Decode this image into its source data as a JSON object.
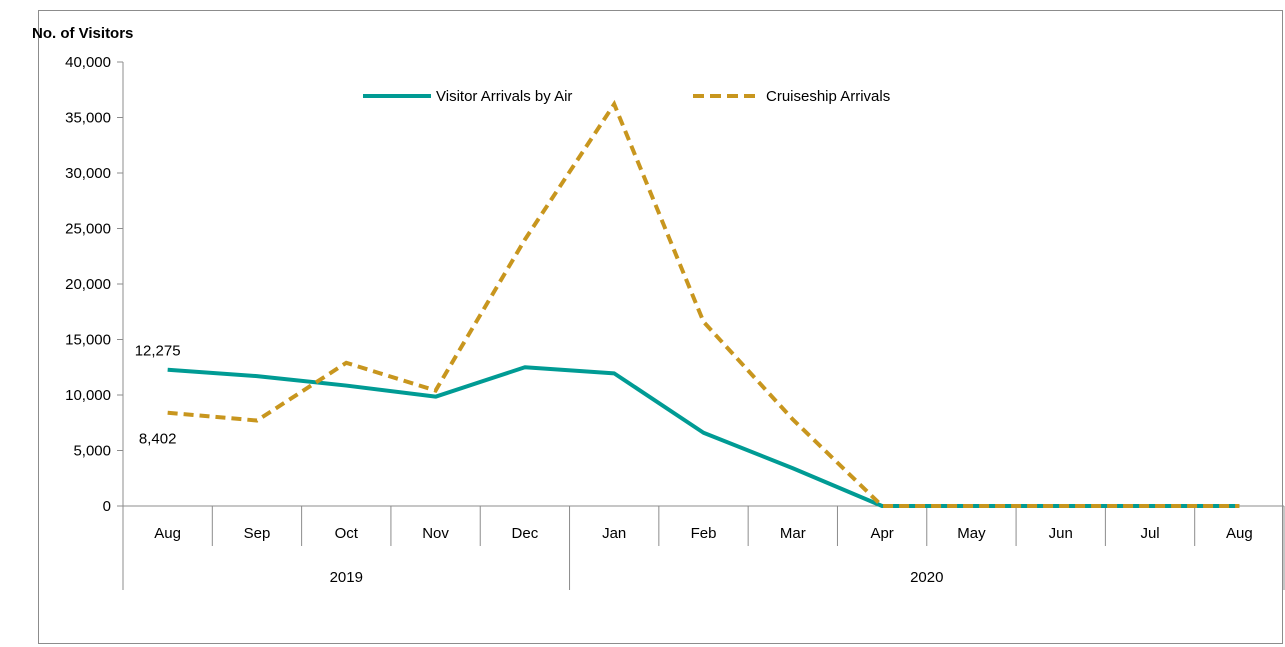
{
  "chart_data": {
    "type": "line",
    "ylabel": "No. of  Visitors",
    "xlabel": "",
    "ylim": [
      0,
      40000
    ],
    "yticks": [
      0,
      5000,
      10000,
      15000,
      20000,
      25000,
      30000,
      35000,
      40000
    ],
    "ytick_labels": [
      "0",
      "5,000",
      "10,000",
      "15,000",
      "20,000",
      "25,000",
      "30,000",
      "35,000",
      "40,000"
    ],
    "categories": [
      "Aug",
      "Sep",
      "Oct",
      "Nov",
      "Dec",
      "Jan",
      "Feb",
      "Mar",
      "Apr",
      "May",
      "Jun",
      "Jul",
      "Aug"
    ],
    "groups": [
      {
        "label": "2019",
        "start": 0,
        "end": 4
      },
      {
        "label": "2020",
        "start": 5,
        "end": 12
      }
    ],
    "series": [
      {
        "name": "Visitor Arrivals by Air",
        "color": "#009b94",
        "style": "solid",
        "values": [
          12275,
          11700,
          10850,
          9850,
          12500,
          11950,
          6600,
          3400,
          0,
          0,
          0,
          0,
          0
        ]
      },
      {
        "name": "Cruiseship Arrivals",
        "color": "#c8961e",
        "style": "dashed",
        "values": [
          8402,
          7700,
          12900,
          10400,
          24000,
          36200,
          16600,
          7800,
          0,
          0,
          0,
          0,
          0
        ]
      }
    ],
    "annotations": [
      {
        "text": "12,275",
        "series": 0,
        "index": 0,
        "position": "above"
      },
      {
        "text": "8,402",
        "series": 1,
        "index": 0,
        "position": "below"
      }
    ],
    "legend": "top-center",
    "grid": false
  }
}
